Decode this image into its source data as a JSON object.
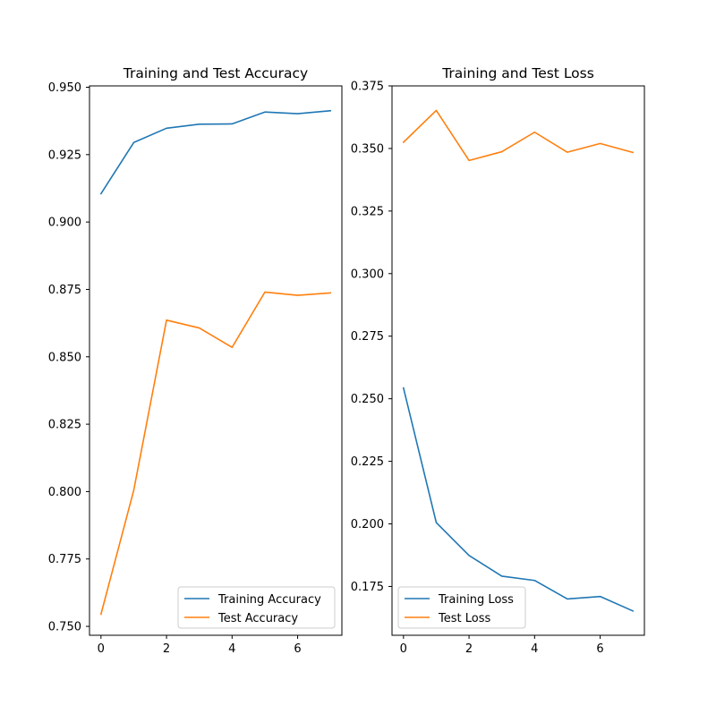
{
  "chart_data": [
    {
      "type": "line",
      "title": "Training and Test Accuracy",
      "xlabel": "",
      "ylabel": "",
      "x": [
        0,
        1,
        2,
        3,
        4,
        5,
        6,
        7
      ],
      "xlim": [
        -0.35,
        7.35
      ],
      "ylim": [
        0.7467,
        0.9505
      ],
      "xticks": [
        "0",
        "2",
        "4",
        "6"
      ],
      "yticks": [
        "0.750",
        "0.775",
        "0.800",
        "0.825",
        "0.850",
        "0.875",
        "0.900",
        "0.925",
        "0.950"
      ],
      "grid": false,
      "legend_position": "lower right",
      "series": [
        {
          "name": "Training Accuracy",
          "color": "#1f77b4",
          "values": [
            0.9105,
            0.9295,
            0.9348,
            0.9363,
            0.9364,
            0.9408,
            0.9402,
            0.9413
          ]
        },
        {
          "name": "Test Accuracy",
          "color": "#ff7f0e",
          "values": [
            0.7545,
            0.8005,
            0.8636,
            0.8607,
            0.8535,
            0.874,
            0.8728,
            0.8737
          ]
        }
      ]
    },
    {
      "type": "line",
      "title": "Training and Test Loss",
      "xlabel": "",
      "ylabel": "",
      "x": [
        0,
        1,
        2,
        3,
        4,
        5,
        6,
        7
      ],
      "xlim": [
        -0.35,
        7.35
      ],
      "ylim": [
        0.1555,
        0.375
      ],
      "xticks": [
        "0",
        "2",
        "4",
        "6"
      ],
      "yticks": [
        "0.175",
        "0.200",
        "0.225",
        "0.250",
        "0.275",
        "0.300",
        "0.325",
        "0.350",
        "0.375"
      ],
      "grid": false,
      "legend_position": "lower left",
      "series": [
        {
          "name": "Training Loss",
          "color": "#1f77b4",
          "values": [
            0.2543,
            0.2005,
            0.1874,
            0.1791,
            0.1774,
            0.17,
            0.171,
            0.1652
          ]
        },
        {
          "name": "Test Loss",
          "color": "#ff7f0e",
          "values": [
            0.3525,
            0.3652,
            0.3452,
            0.3487,
            0.3565,
            0.3485,
            0.352,
            0.3484
          ]
        }
      ]
    }
  ]
}
